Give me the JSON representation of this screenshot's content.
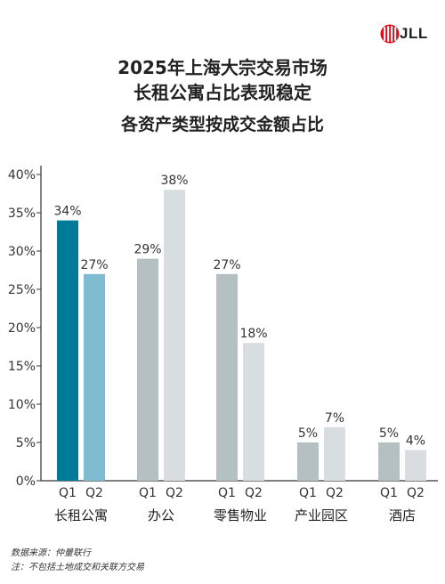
{
  "brand": {
    "name": "JLL",
    "color": "#e30613"
  },
  "chart_data": {
    "type": "bar",
    "title": "2025年上海大宗交易市场",
    "title2": "长租公寓占比表现稳定",
    "subtitle": "各资产类型按成交金额占比",
    "categories": [
      "长租公寓",
      "办公",
      "零售物业",
      "产业园区",
      "酒店"
    ],
    "quarters": [
      "Q1",
      "Q2"
    ],
    "series": [
      {
        "name": "Q1",
        "values": [
          34,
          29,
          27,
          5,
          5
        ]
      },
      {
        "name": "Q2",
        "values": [
          27,
          38,
          18,
          7,
          4
        ]
      }
    ],
    "value_labels": {
      "Q1": [
        "34%",
        "29%",
        "27%",
        "5%",
        "5%"
      ],
      "Q2": [
        "27%",
        "38%",
        "18%",
        "7%",
        "4%"
      ]
    },
    "ylim": [
      0,
      40
    ],
    "yticks": [
      0,
      5,
      10,
      15,
      20,
      25,
      30,
      35,
      40
    ],
    "ytick_labels": [
      "0%",
      "5%",
      "10%",
      "15%",
      "20%",
      "25%",
      "30%",
      "35%",
      "40%"
    ],
    "colors": {
      "highlight_q1": "#007a99",
      "highlight_q2": "#7fbcd2",
      "q1": "#b5c0c2",
      "q2": "#d8dddf",
      "axis": "#333333"
    },
    "grid": false,
    "legend": "none"
  },
  "footer": {
    "source": "数据来源：仲量联行",
    "note": "注：不包括土地成交和关联方交易"
  }
}
